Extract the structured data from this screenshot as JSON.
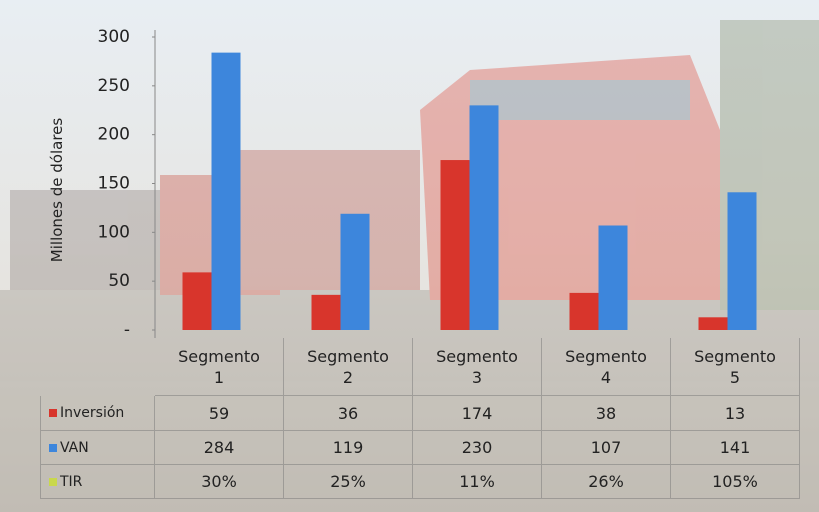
{
  "chart_data": {
    "type": "bar",
    "y_axis_label": "Millones de dólares",
    "categories": [
      "Segmento 1",
      "Segmento 2",
      "Segmento 3",
      "Segmento 4",
      "Segmento 5"
    ],
    "series": [
      {
        "name": "Inversión",
        "color": "#d8352c",
        "values": [
          59,
          36,
          174,
          38,
          13
        ]
      },
      {
        "name": "VAN",
        "color": "#3d86dc",
        "values": [
          284,
          119,
          230,
          107,
          141
        ]
      },
      {
        "name": "TIR",
        "color": "#c9d84c",
        "values": [
          30,
          25,
          11,
          26,
          105
        ],
        "value_labels": [
          "30%",
          "25%",
          "11%",
          "26%",
          "105%"
        ],
        "in_table_only": true
      }
    ],
    "ylim": [
      0,
      300
    ],
    "yticks": [
      {
        "value": 0,
        "label": "-"
      },
      50,
      100,
      150,
      200,
      250,
      300
    ]
  }
}
